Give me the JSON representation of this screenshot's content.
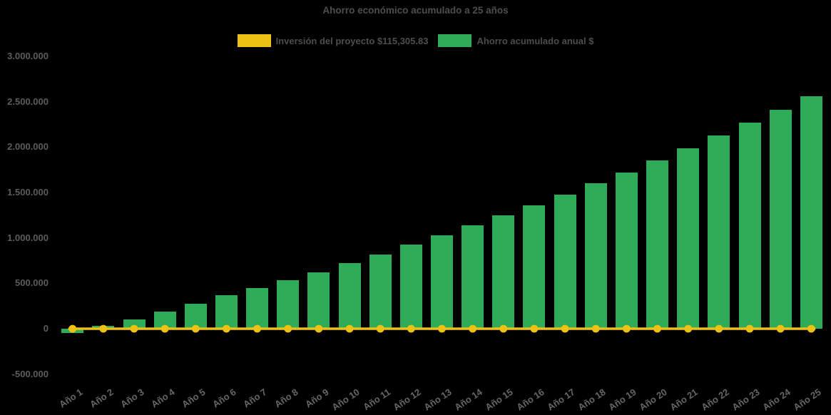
{
  "chart_data": {
    "type": "bar",
    "title": "Ahorro económico acumulado a 25 años",
    "background": "#000000",
    "grid": false,
    "legend_position": "top",
    "categories": [
      "Año 1",
      "Año 2",
      "Año 3",
      "Año 4",
      "Año 5",
      "Año 6",
      "Año 7",
      "Año 8",
      "Año 9",
      "Año 10",
      "Año 11",
      "Año 12",
      "Año 13",
      "Año 14",
      "Año 15",
      "Año 16",
      "Año 17",
      "Año 18",
      "Año 19",
      "Año 20",
      "Año 21",
      "Año 22",
      "Año 23",
      "Año 24",
      "Año 25"
    ],
    "series": [
      {
        "name": "Inversión del proyecto $115,305.83",
        "type": "line",
        "color": "#EDC215",
        "marker": "circle",
        "constant_value": 115305.83,
        "plotted_level": 0
      },
      {
        "name": "Ahorro acumulado anual $",
        "type": "bar",
        "color": "#2EAC58",
        "values": [
          -45000,
          30000,
          105000,
          185000,
          275000,
          365000,
          450000,
          535000,
          620000,
          720000,
          815000,
          925000,
          1025000,
          1140000,
          1250000,
          1355000,
          1475000,
          1600000,
          1720000,
          1850000,
          1985000,
          2125000,
          2265000,
          2410000,
          2555000
        ]
      }
    ],
    "ylim": [
      -500000,
      3000000
    ],
    "yticks": [
      3000000,
      2500000,
      2000000,
      1500000,
      1000000,
      500000,
      0,
      -500000
    ],
    "xlabel": "",
    "ylabel": ""
  }
}
